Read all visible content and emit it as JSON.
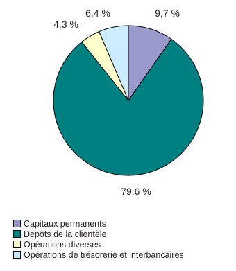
{
  "chart_data": {
    "type": "pie",
    "title": "",
    "start_angle_deg": 0,
    "direction": "clockwise",
    "slices": [
      {
        "name": "Capitaux permanents",
        "value": 9.7,
        "label": "9,7 %",
        "color": "#9999cc"
      },
      {
        "name": "Dépôts de la clientèle",
        "value": 79.6,
        "label": "79,6 %",
        "color": "#008080"
      },
      {
        "name": "Opérations diverses",
        "value": 4.3,
        "label": "4,3 %",
        "color": "#ffffcc"
      },
      {
        "name": "Opérations de trésorerie et interbancaires",
        "value": 6.4,
        "label": "6,4 %",
        "color": "#ccecff"
      }
    ],
    "legend_position": "bottom-left",
    "slice_border_color": "#000000"
  }
}
